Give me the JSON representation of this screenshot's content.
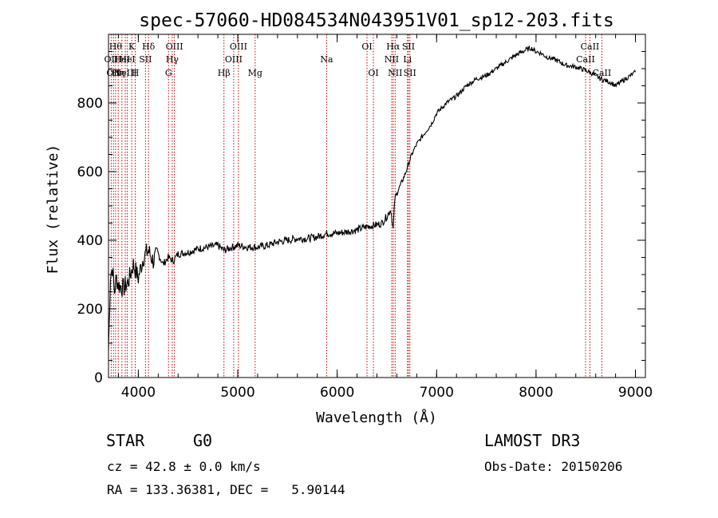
{
  "chart_data": {
    "type": "line",
    "title": "spec-57060-HD084534N043951V01_sp12-203.fits",
    "xlabel": "Wavelength (Å)",
    "ylabel": "Flux (relative)",
    "xlim": [
      3700,
      9100
    ],
    "ylim": [
      0,
      1000
    ],
    "x_ticks": [
      4000,
      5000,
      6000,
      7000,
      8000,
      9000
    ],
    "x_tick_labels": [
      "4000",
      "5000",
      "6000",
      "7000",
      "8000",
      "9000"
    ],
    "y_ticks": [
      0,
      200,
      400,
      600,
      800
    ],
    "y_tick_labels": [
      "0",
      "200",
      "400",
      "600",
      "800"
    ],
    "series": [
      {
        "name": "spectrum",
        "color": "#000000",
        "x": [
          3700,
          3720,
          3740,
          3760,
          3780,
          3800,
          3850,
          3900,
          3950,
          4000,
          4050,
          4100,
          4150,
          4200,
          4250,
          4300,
          4350,
          4400,
          4500,
          4600,
          4700,
          4800,
          4861,
          4900,
          5000,
          5100,
          5200,
          5300,
          5400,
          5500,
          5600,
          5700,
          5800,
          5900,
          6000,
          6100,
          6200,
          6300,
          6400,
          6450,
          6500,
          6540,
          6563,
          6580,
          6620,
          6680,
          6750,
          6800,
          6850,
          6900,
          6950,
          7000,
          7100,
          7200,
          7300,
          7400,
          7500,
          7600,
          7700,
          7800,
          7900,
          7950,
          8000,
          8050,
          8100,
          8200,
          8300,
          8400,
          8500,
          8600,
          8650,
          8700,
          8750,
          8800,
          8850,
          8900,
          8950,
          8980,
          9000
        ],
        "y": [
          80,
          300,
          320,
          250,
          290,
          270,
          260,
          280,
          330,
          290,
          350,
          370,
          340,
          360,
          330,
          350,
          340,
          360,
          365,
          375,
          380,
          385,
          370,
          375,
          385,
          380,
          380,
          385,
          395,
          400,
          405,
          405,
          410,
          420,
          420,
          425,
          430,
          440,
          445,
          450,
          470,
          490,
          430,
          520,
          550,
          590,
          650,
          680,
          700,
          720,
          740,
          770,
          800,
          820,
          850,
          870,
          880,
          900,
          920,
          940,
          955,
          960,
          950,
          945,
          935,
          925,
          910,
          905,
          895,
          880,
          870,
          865,
          860,
          850,
          860,
          870,
          880,
          885,
          890
        ]
      }
    ],
    "emission_lines": [
      {
        "x": 3727,
        "label": "OII",
        "row": 2
      },
      {
        "x": 3750,
        "label": "OII",
        "row": 3
      },
      {
        "x": 3771,
        "label": "Hθ",
        "row": 1
      },
      {
        "x": 3798,
        "label": "Hη",
        "row": 3
      },
      {
        "x": 3835,
        "label": "HeI",
        "row": 2
      },
      {
        "x": 3869,
        "label": "NeIII",
        "row": 3
      },
      {
        "x": 3889,
        "label": "HeI",
        "row": 2
      },
      {
        "x": 3934,
        "label": "K",
        "row": 1
      },
      {
        "x": 3969,
        "label": "H",
        "row": 3
      },
      {
        "x": 4072,
        "label": "SII",
        "row": 2
      },
      {
        "x": 4102,
        "label": "Hδ",
        "row": 1
      },
      {
        "x": 4304,
        "label": "G",
        "row": 3
      },
      {
        "x": 4341,
        "label": "Hγ",
        "row": 2
      },
      {
        "x": 4363,
        "label": "OIII",
        "row": 1
      },
      {
        "x": 4861,
        "label": "Hβ",
        "row": 3
      },
      {
        "x": 4959,
        "label": "OIII",
        "row": 2
      },
      {
        "x": 5007,
        "label": "OIII",
        "row": 1
      },
      {
        "x": 5175,
        "label": "Mg",
        "row": 3
      },
      {
        "x": 5894,
        "label": "Na",
        "row": 2
      },
      {
        "x": 6300,
        "label": "OI",
        "row": 1
      },
      {
        "x": 6364,
        "label": "OI",
        "row": 3
      },
      {
        "x": 6548,
        "label": "NII",
        "row": 2
      },
      {
        "x": 6563,
        "label": "Hα",
        "row": 1
      },
      {
        "x": 6583,
        "label": "NII",
        "row": 3
      },
      {
        "x": 6707,
        "label": "Li",
        "row": 2
      },
      {
        "x": 6717,
        "label": "SII",
        "row": 1
      },
      {
        "x": 6731,
        "label": "SII",
        "row": 3
      },
      {
        "x": 8498,
        "label": "CaII",
        "row": 2
      },
      {
        "x": 8542,
        "label": "CaII",
        "row": 1
      },
      {
        "x": 8662,
        "label": "CaII",
        "row": 3
      }
    ]
  },
  "info": {
    "object_class": "STAR",
    "subclass": "G0",
    "survey": "LAMOST DR3",
    "cz": "cz = 42.8 ± 0.0 km/s",
    "obs_date": "Obs-Date: 20150206",
    "coords": "RA = 133.36381, DEC =   5.90144"
  }
}
